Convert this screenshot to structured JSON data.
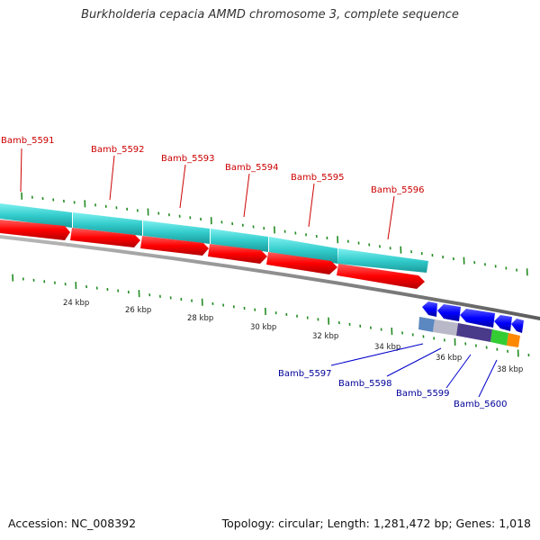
{
  "title": "Burkholderia cepacia AMMD chromosome 3, complete sequence",
  "accession": "Accession: NC_008392",
  "summary": "Topology: circular; Length: 1,281,472 bp; Genes: 1,018",
  "colors": {
    "forward_gene_label": "#cc0000",
    "reverse_gene_label": "#000099",
    "cds_forward": "#ff0000",
    "cds_reverse": "#0000ff",
    "gene_bar": "#33cccc",
    "backbone": "#888888",
    "ticks": "#228b22"
  },
  "scale": {
    "unit": "kbp",
    "labels": [
      "24 kbp",
      "26 kbp",
      "28 kbp",
      "30 kbp",
      "32 kbp",
      "34 kbp",
      "36 kbp",
      "38 kbp"
    ]
  },
  "forward_genes": [
    "Bamb_5591",
    "Bamb_5592",
    "Bamb_5593",
    "Bamb_5594",
    "Bamb_5595",
    "Bamb_5596"
  ],
  "reverse_genes": [
    "Bamb_5597",
    "Bamb_5598",
    "Bamb_5599",
    "Bamb_5600"
  ]
}
